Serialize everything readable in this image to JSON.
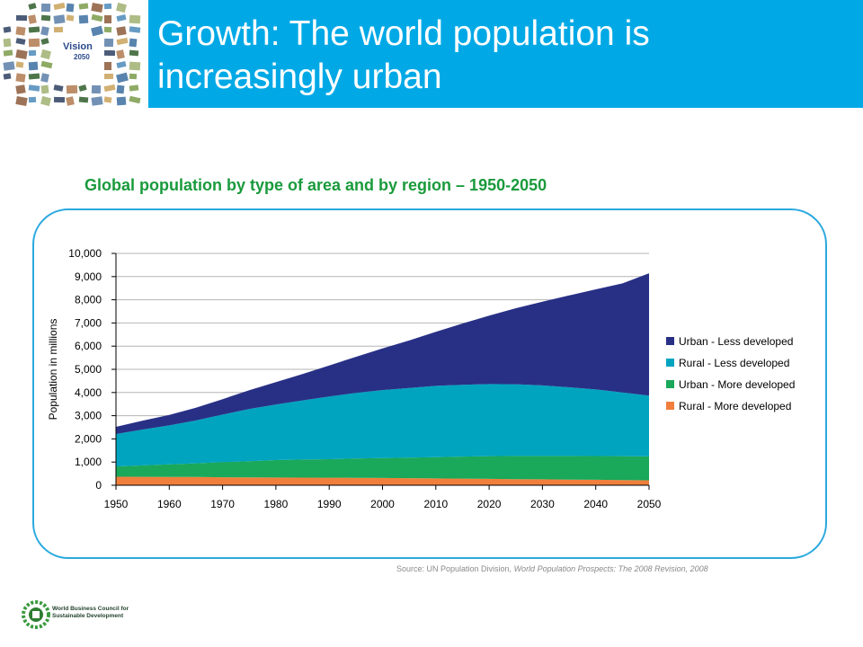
{
  "header": {
    "title": "Growth: The world population is increasingly urban",
    "logo_text_1": "Vision",
    "logo_text_2": "2050"
  },
  "chart_data": {
    "type": "area",
    "title": "Global population by type of area and by region – 1950-2050",
    "ylabel": "Population in millions",
    "xlabel": "",
    "stacked": true,
    "ylim": [
      0,
      10000
    ],
    "y_ticks": [
      "0",
      "1,000",
      "2,000",
      "3,000",
      "4,000",
      "5,000",
      "6,000",
      "7,000",
      "8,000",
      "9,000",
      "10,000"
    ],
    "x_ticks": [
      "1950",
      "1960",
      "1970",
      "1980",
      "1990",
      "2000",
      "2010",
      "2020",
      "2030",
      "2040",
      "2050"
    ],
    "x": [
      1950,
      1955,
      1960,
      1965,
      1970,
      1975,
      1980,
      1985,
      1990,
      1995,
      2000,
      2005,
      2010,
      2015,
      2020,
      2025,
      2030,
      2035,
      2040,
      2045,
      2050
    ],
    "legend_position": "right",
    "series": [
      {
        "name": "Rural - More developed",
        "color": "#f07f3c",
        "values": [
          370,
          365,
          360,
          355,
          345,
          340,
          335,
          330,
          325,
          320,
          315,
          305,
          295,
          285,
          275,
          265,
          255,
          245,
          235,
          225,
          215
        ]
      },
      {
        "name": "Urban - More developed",
        "color": "#1aa85a",
        "values": [
          440,
          490,
          540,
          590,
          650,
          700,
          750,
          780,
          800,
          830,
          860,
          890,
          920,
          950,
          980,
          1000,
          1010,
          1020,
          1025,
          1030,
          1030
        ]
      },
      {
        "name": "Rural - Less developed",
        "color": "#00a4bf",
        "values": [
          1400,
          1550,
          1680,
          1850,
          2050,
          2250,
          2400,
          2550,
          2700,
          2830,
          2930,
          3000,
          3070,
          3100,
          3110,
          3090,
          3040,
          2960,
          2870,
          2750,
          2620
        ]
      },
      {
        "name": "Urban - Less developed",
        "color": "#283086",
        "values": [
          310,
          380,
          450,
          550,
          670,
          810,
          960,
          1140,
          1340,
          1560,
          1800,
          2050,
          2330,
          2640,
          2950,
          3280,
          3610,
          3960,
          4320,
          4700,
          5280
        ]
      }
    ],
    "source_prefix": "Source: UN Population Division, ",
    "source_italic": "World Population Prospects: The 2008 Revision, 2008"
  },
  "footer": {
    "org_line1": "World Business Council for",
    "org_line2": "Sustainable Development"
  }
}
